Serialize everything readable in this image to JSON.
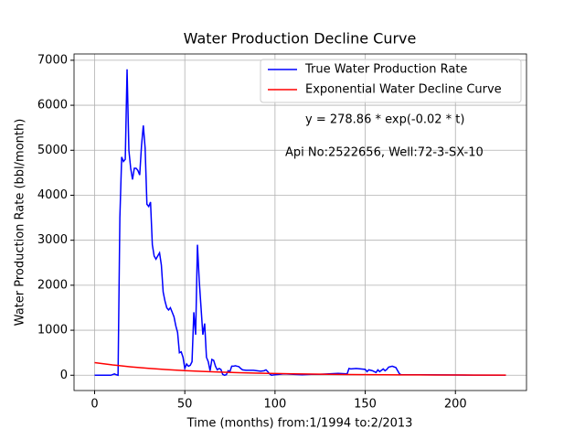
{
  "chart_data": {
    "type": "line",
    "title": "Water Production Decline Curve",
    "xlabel": "Time (months) from:1/1994 to:2/2013",
    "ylabel": "Water Production Rate (bbl/month)",
    "annotations": [
      "y = 278.86 * exp(-0.02 * t)",
      "Api No:2522656, Well:72-3-SX-10"
    ],
    "series": [
      {
        "name": "True Water Production Rate",
        "color": "#0000ff",
        "x": [
          0,
          5,
          9,
          11,
          12,
          13,
          14,
          15,
          16,
          17,
          18,
          19,
          20,
          21,
          22,
          23,
          24,
          25,
          26,
          27,
          28,
          29,
          30,
          31,
          32,
          33,
          34,
          35,
          36,
          37,
          38,
          39,
          40,
          41,
          42,
          43,
          44,
          45,
          46,
          47,
          48,
          49,
          50,
          51,
          52,
          53,
          54,
          55,
          56,
          57,
          58,
          59,
          60,
          61,
          62,
          63,
          64,
          65,
          66,
          67,
          68,
          69,
          70,
          71,
          72,
          73,
          74,
          75,
          76,
          77,
          78,
          79,
          80,
          81,
          82,
          84,
          88,
          90,
          92,
          94,
          95,
          96,
          97,
          98,
          100,
          105,
          110,
          115,
          120,
          125,
          130,
          135,
          140,
          141,
          142,
          145,
          150,
          151,
          152,
          154,
          156,
          157,
          158,
          160,
          161,
          162,
          163,
          165,
          167,
          168,
          169,
          170,
          180,
          200,
          228
        ],
        "values": [
          0,
          0,
          0,
          30,
          10,
          0,
          3500,
          4850,
          4750,
          4800,
          6800,
          5000,
          4600,
          4350,
          4600,
          4600,
          4550,
          4450,
          5100,
          5550,
          5050,
          3800,
          3750,
          3850,
          2900,
          2650,
          2580,
          2650,
          2720,
          2450,
          1850,
          1650,
          1500,
          1450,
          1500,
          1400,
          1300,
          1100,
          950,
          500,
          520,
          400,
          150,
          250,
          200,
          220,
          300,
          1400,
          900,
          2900,
          2100,
          1500,
          900,
          1150,
          400,
          300,
          100,
          350,
          330,
          200,
          120,
          150,
          130,
          20,
          0,
          10,
          100,
          80,
          200,
          200,
          210,
          200,
          190,
          150,
          120,
          110,
          110,
          100,
          90,
          100,
          120,
          80,
          30,
          0,
          10,
          30,
          20,
          10,
          20,
          20,
          30,
          40,
          30,
          150,
          140,
          150,
          130,
          80,
          120,
          100,
          60,
          120,
          80,
          140,
          100,
          130,
          180,
          200,
          170,
          100,
          30,
          10,
          10,
          5,
          0
        ]
      },
      {
        "name": "Exponential Water Decline Curve",
        "color": "#ff0000",
        "x": [
          0,
          10,
          20,
          30,
          40,
          50,
          60,
          70,
          80,
          90,
          100,
          110,
          120,
          130,
          140,
          150,
          160,
          170,
          180,
          190,
          200,
          210,
          220,
          228
        ],
        "values": [
          278.86,
          228.3,
          186.9,
          153.0,
          125.3,
          102.6,
          84.0,
          68.8,
          56.3,
          46.1,
          37.7,
          30.9,
          25.3,
          20.7,
          16.9,
          13.9,
          11.4,
          9.3,
          7.6,
          6.2,
          5.1,
          4.2,
          3.4,
          2.9
        ]
      }
    ],
    "xlim": [
      -11.4,
      239.4
    ],
    "xticks": [
      0,
      50,
      100,
      150,
      200
    ],
    "ylim": [
      -340,
      7140
    ],
    "yticks": [
      0,
      1000,
      2000,
      3000,
      4000,
      5000,
      6000,
      7000
    ],
    "grid": true,
    "legend": "upper right"
  }
}
